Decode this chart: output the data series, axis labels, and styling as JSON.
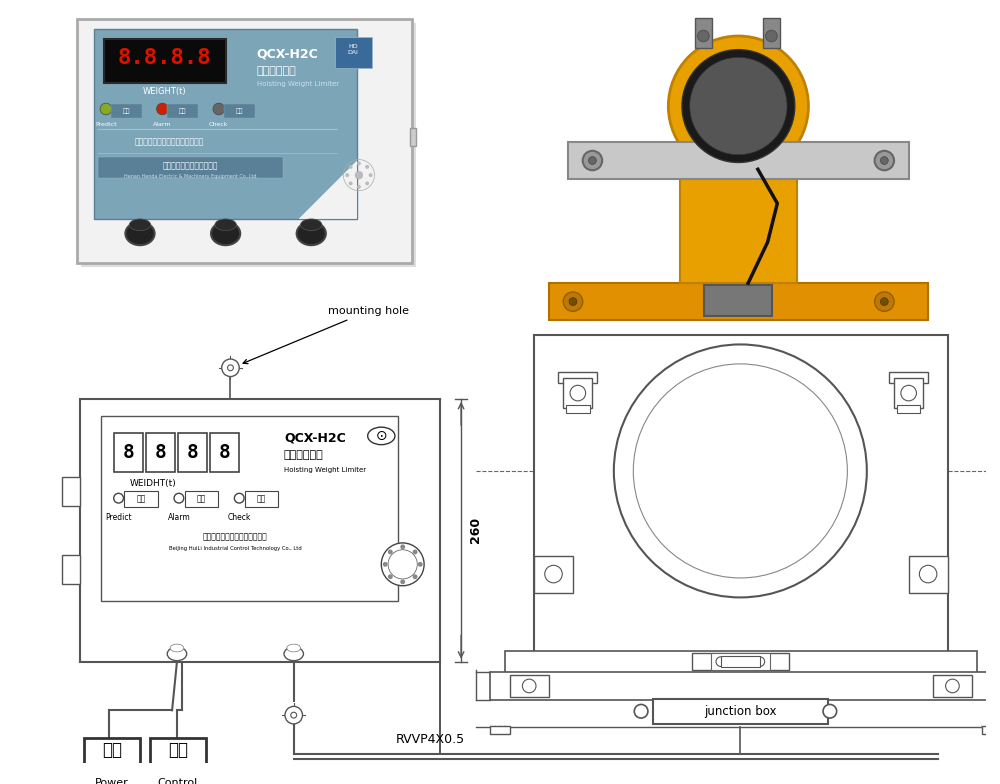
{
  "bg_color": "#ffffff",
  "lc": "#555555",
  "dc": "#333333",
  "label_mounting": "mounting hole",
  "label_rvvp": "RVVP4X0.5",
  "label_260": "260",
  "label_power_cn": "电源",
  "label_control_cn": "控制",
  "label_power_en": "Power",
  "label_control_en": "Control",
  "label_junction": "junction box",
  "label_qcx": "QCX-H2C",
  "label_hoisting_cn": "起重量限制器",
  "label_hoisting_en": "Hoisting Weight Limiter",
  "label_weight_photo": "WEIGHT(t)",
  "label_weidht_sch": "WEIDHT(t)",
  "label_predict": "Predict",
  "label_alarm": "Alarm",
  "label_check": "Check",
  "label_predict_cn": "预警",
  "label_alarm_cn": "报警",
  "label_check_cn": "自检",
  "label_beijing_cn": "北京恒赛赛达工控科技有限公司",
  "label_beijing_en": "BeiJing HuiLi Industrial Control Technology Co., Ltd",
  "label_bj_photo": "北京起重运输机械设计示究院监制",
  "label_henda_photo": "河南恒达机电设备有限公司",
  "label_henda_en": "Henan Henda Electric & Machinery Equipment Co.,Ltd.",
  "label_8888": "8888"
}
